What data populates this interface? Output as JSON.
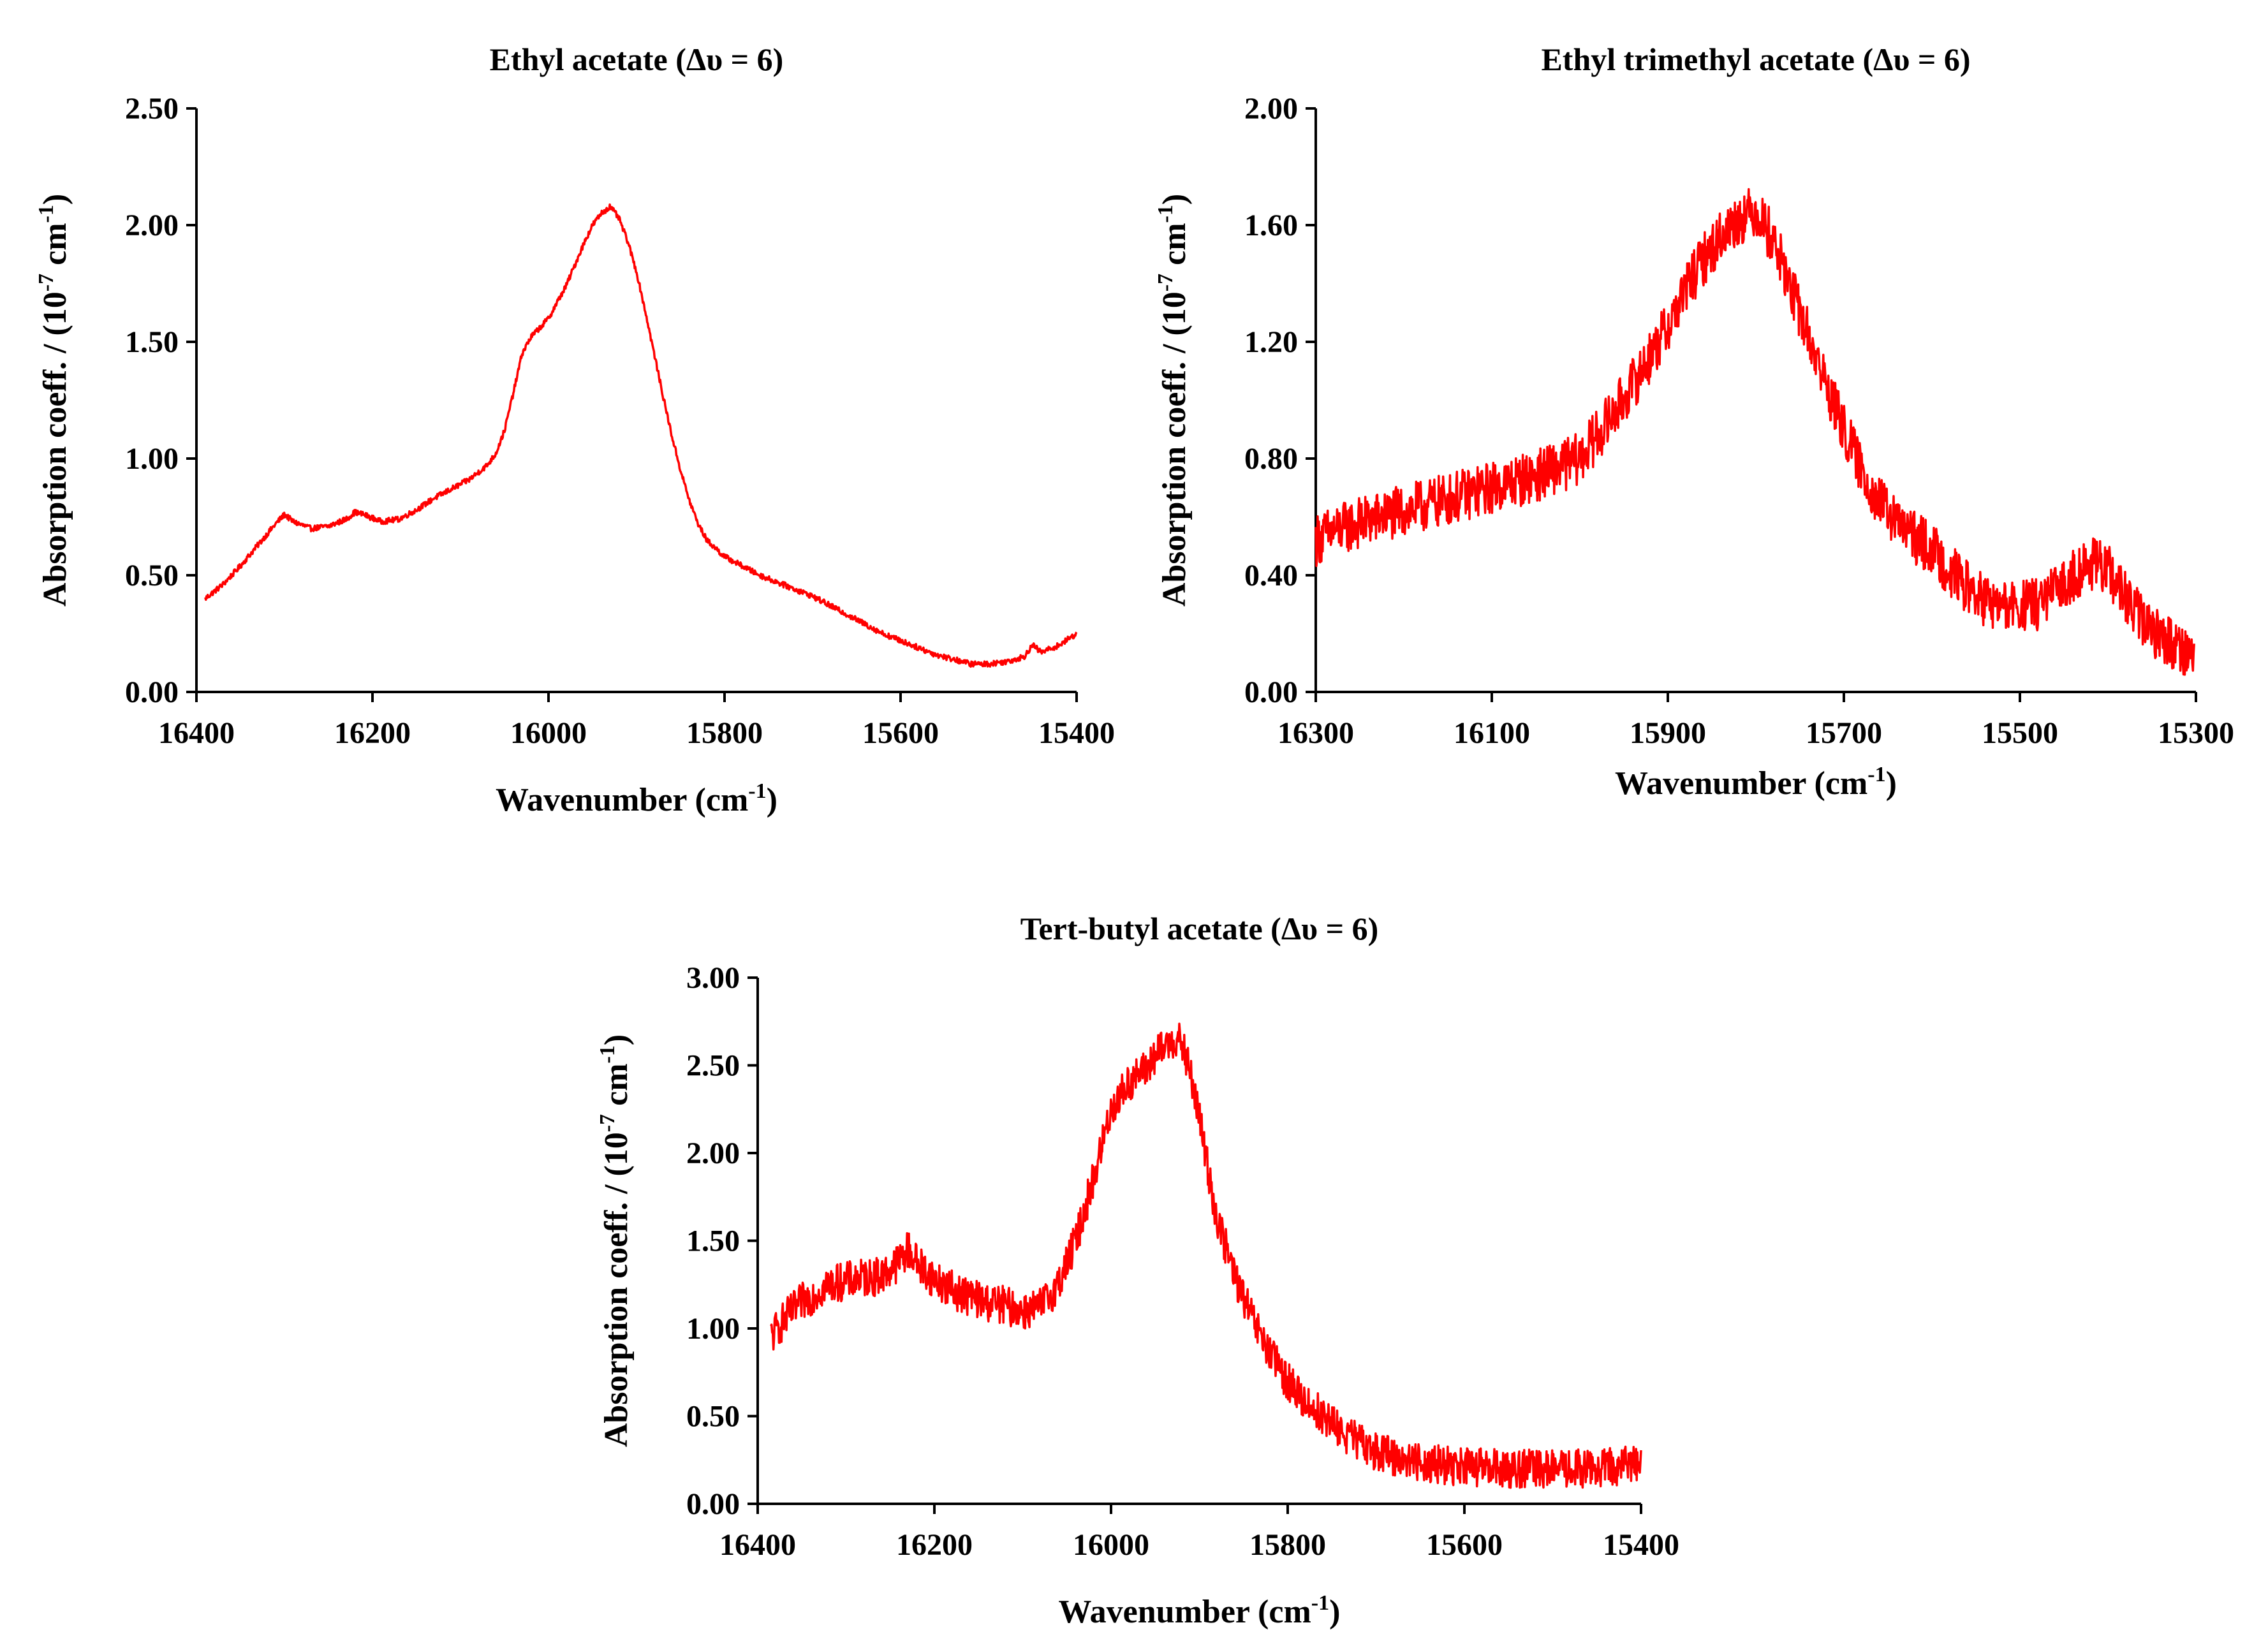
{
  "colors": {
    "series": "#ff0000",
    "axis": "#000000",
    "background": "#ffffff"
  },
  "chart_data": [
    {
      "id": "ethyl-acetate",
      "type": "line",
      "title": "Ethyl acetate (Δυ = 6)",
      "xlabel_main": "Wavenumber (cm",
      "xlabel_sup": "-1",
      "xlabel_end": ")",
      "ylabel_main": "Absorption coeff. / (10",
      "ylabel_sup1": "-7",
      "ylabel_mid": " cm",
      "ylabel_sup2": "-1",
      "ylabel_end": ")",
      "xlim": [
        16400,
        15400
      ],
      "ylim": [
        0,
        2.5
      ],
      "xticks": [
        "16400",
        "16200",
        "16000",
        "15800",
        "15600",
        "15400"
      ],
      "yticks": [
        "0.00",
        "0.50",
        "1.00",
        "1.50",
        "2.00",
        "2.50"
      ],
      "noise": 0.012,
      "x_start": 16390,
      "x_end": 15400,
      "series": [
        {
          "name": "Ethyl acetate",
          "x": [
            16390,
            16370,
            16350,
            16330,
            16310,
            16300,
            16290,
            16270,
            16250,
            16230,
            16220,
            16210,
            16190,
            16170,
            16150,
            16130,
            16110,
            16090,
            16070,
            16060,
            16050,
            16040,
            16030,
            16020,
            16010,
            16000,
            15990,
            15980,
            15970,
            15960,
            15950,
            15940,
            15930,
            15920,
            15910,
            15900,
            15890,
            15880,
            15870,
            15860,
            15850,
            15840,
            15830,
            15820,
            15800,
            15780,
            15760,
            15740,
            15720,
            15700,
            15680,
            15660,
            15640,
            15620,
            15600,
            15580,
            15560,
            15540,
            15520,
            15500,
            15480,
            15460,
            15450,
            15440,
            15420,
            15400
          ],
          "y": [
            0.4,
            0.46,
            0.54,
            0.63,
            0.72,
            0.76,
            0.73,
            0.7,
            0.71,
            0.74,
            0.77,
            0.76,
            0.73,
            0.74,
            0.78,
            0.83,
            0.87,
            0.91,
            0.97,
            1.02,
            1.12,
            1.28,
            1.45,
            1.52,
            1.56,
            1.6,
            1.67,
            1.74,
            1.83,
            1.92,
            2.0,
            2.05,
            2.08,
            2.03,
            1.93,
            1.8,
            1.63,
            1.45,
            1.27,
            1.1,
            0.95,
            0.82,
            0.72,
            0.65,
            0.58,
            0.54,
            0.5,
            0.47,
            0.44,
            0.41,
            0.37,
            0.33,
            0.29,
            0.25,
            0.22,
            0.19,
            0.16,
            0.14,
            0.12,
            0.12,
            0.13,
            0.15,
            0.2,
            0.17,
            0.2,
            0.25
          ]
        }
      ]
    },
    {
      "id": "ethyl-trimethyl-acetate",
      "type": "line",
      "title": "Ethyl trimethyl acetate (Δυ = 6)",
      "xlabel_main": "Wavenumber (cm",
      "xlabel_sup": "-1",
      "xlabel_end": ")",
      "ylabel_main": "Absorption coeff. / (10",
      "ylabel_sup1": "-7",
      "ylabel_mid": " cm",
      "ylabel_sup2": "-1",
      "ylabel_end": ")",
      "xlim": [
        16300,
        15300
      ],
      "ylim": [
        0,
        2.0
      ],
      "xticks": [
        "16300",
        "16100",
        "15900",
        "15700",
        "15500",
        "15300"
      ],
      "yticks": [
        "0.00",
        "0.40",
        "0.80",
        "1.20",
        "1.60",
        "2.00"
      ],
      "noise": 0.09,
      "x_start": 16300,
      "x_end": 15302,
      "series": [
        {
          "name": "Ethyl trimethyl acetate",
          "x": [
            16300,
            16280,
            16250,
            16200,
            16150,
            16100,
            16050,
            16000,
            15960,
            15920,
            15900,
            15880,
            15860,
            15840,
            15820,
            15800,
            15780,
            15760,
            15740,
            15720,
            15700,
            15680,
            15660,
            15640,
            15620,
            15600,
            15580,
            15560,
            15540,
            15520,
            15500,
            15480,
            15460,
            15440,
            15420,
            15400,
            15380,
            15360,
            15340,
            15320,
            15302
          ],
          "y": [
            0.52,
            0.55,
            0.58,
            0.62,
            0.66,
            0.7,
            0.74,
            0.8,
            0.96,
            1.15,
            1.25,
            1.38,
            1.48,
            1.56,
            1.62,
            1.65,
            1.55,
            1.38,
            1.22,
            1.05,
            0.9,
            0.76,
            0.65,
            0.58,
            0.53,
            0.49,
            0.42,
            0.36,
            0.31,
            0.29,
            0.29,
            0.3,
            0.34,
            0.4,
            0.44,
            0.42,
            0.32,
            0.24,
            0.19,
            0.16,
            0.12
          ]
        }
      ]
    },
    {
      "id": "tert-butyl-acetate",
      "type": "line",
      "title": "Tert-butyl acetate (Δυ = 6)",
      "xlabel_main": "Wavenumber (cm",
      "xlabel_sup": "-1",
      "xlabel_end": ")",
      "ylabel_main": "Absorption coeff. / (10",
      "ylabel_sup1": "-7",
      "ylabel_mid": " cm",
      "ylabel_sup2": "-1",
      "ylabel_end": ")",
      "xlim": [
        16400,
        15400
      ],
      "ylim": [
        0,
        3.0
      ],
      "xticks": [
        "16400",
        "16200",
        "16000",
        "15800",
        "15600",
        "15400"
      ],
      "yticks": [
        "0.00",
        "0.50",
        "1.00",
        "1.50",
        "2.00",
        "2.50",
        "3.00"
      ],
      "noise": 0.11,
      "x_start": 16385,
      "x_end": 15400,
      "series": [
        {
          "name": "Tert-butyl acetate",
          "x": [
            16385,
            16370,
            16350,
            16320,
            16290,
            16260,
            16240,
            16230,
            16220,
            16200,
            16180,
            16160,
            16140,
            16120,
            16100,
            16080,
            16060,
            16040,
            16020,
            16000,
            15980,
            15960,
            15950,
            15940,
            15930,
            15920,
            15910,
            15900,
            15890,
            15880,
            15860,
            15840,
            15820,
            15800,
            15780,
            15760,
            15740,
            15720,
            15700,
            15680,
            15650,
            15620,
            15600,
            15550,
            15500,
            15450,
            15420,
            15400
          ],
          "y": [
            0.95,
            1.05,
            1.15,
            1.25,
            1.28,
            1.3,
            1.38,
            1.45,
            1.38,
            1.28,
            1.22,
            1.18,
            1.15,
            1.13,
            1.1,
            1.12,
            1.25,
            1.5,
            1.85,
            2.25,
            2.4,
            2.48,
            2.55,
            2.6,
            2.65,
            2.62,
            2.45,
            2.2,
            1.9,
            1.62,
            1.3,
            1.05,
            0.85,
            0.7,
            0.58,
            0.5,
            0.42,
            0.35,
            0.3,
            0.27,
            0.24,
            0.22,
            0.21,
            0.2,
            0.2,
            0.2,
            0.22,
            0.25
          ]
        }
      ]
    }
  ]
}
